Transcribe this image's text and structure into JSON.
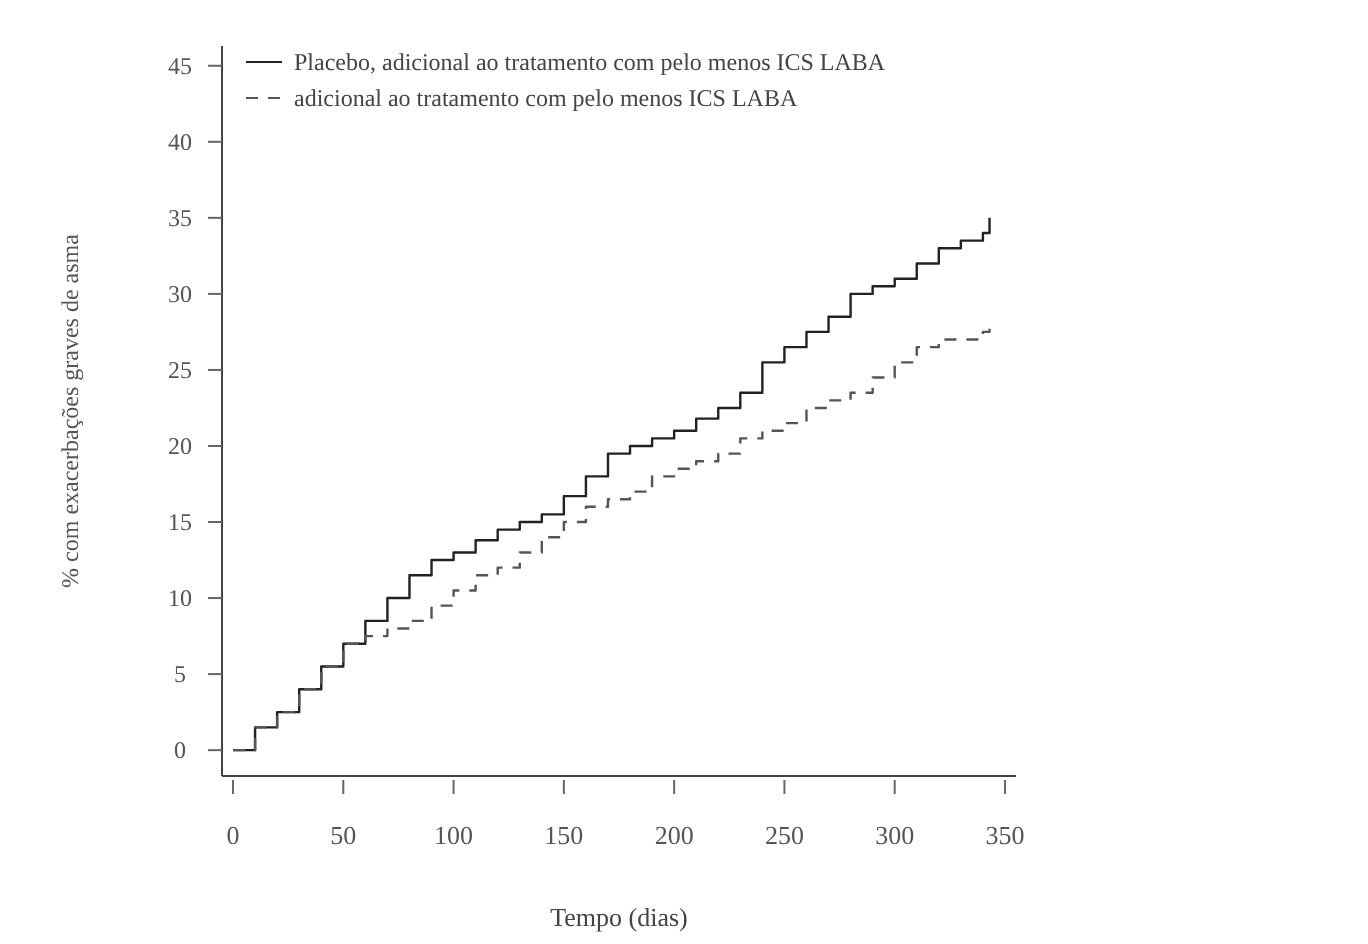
{
  "chart_data": {
    "type": "step",
    "xlabel": "Tempo (dias)",
    "ylabel": "% com exacerbações graves de asma",
    "xlim": [
      -5,
      355
    ],
    "ylim": [
      -1.7,
      46.3
    ],
    "xticks": [
      0,
      50,
      100,
      150,
      200,
      250,
      300,
      350
    ],
    "yticks": [
      0,
      5,
      10,
      15,
      20,
      25,
      30,
      35,
      40,
      45
    ],
    "grid": false,
    "legend": "top left",
    "marker": "none",
    "x": [
      0,
      10,
      20,
      30,
      40,
      50,
      60,
      70,
      80,
      90,
      100,
      110,
      120,
      130,
      140,
      150,
      160,
      170,
      180,
      190,
      200,
      210,
      220,
      230,
      240,
      250,
      260,
      270,
      280,
      290,
      300,
      310,
      320,
      330,
      340,
      343
    ],
    "series": [
      {
        "name": "Placebo, adicional ao tratamento com pelo menos ICS LABA",
        "color": "#222222",
        "line_style": "solid",
        "values": [
          0,
          1.5,
          2.5,
          4,
          5.5,
          7,
          8.5,
          10,
          11.5,
          12.5,
          13,
          13.8,
          14.5,
          15,
          15.5,
          16.7,
          18,
          19.5,
          20,
          20.5,
          21,
          21.8,
          22.5,
          23.5,
          25.5,
          26.5,
          27.5,
          28.5,
          30,
          30.5,
          31,
          32,
          33,
          33.5,
          34,
          35
        ]
      },
      {
        "name": "adicional ao tratamento com pelo menos ICS LABA",
        "color": "#555555",
        "line_style": "dashed",
        "values": [
          0,
          1.5,
          2.5,
          4,
          5.5,
          7,
          7.5,
          8,
          8.5,
          9.5,
          10.5,
          11.5,
          12,
          13,
          14,
          15,
          16,
          16.5,
          17,
          18,
          18.5,
          19,
          19.5,
          20.5,
          21,
          21.5,
          22.5,
          23,
          23.5,
          24.5,
          25.5,
          26.5,
          27,
          27,
          27.5,
          28
        ]
      }
    ]
  }
}
